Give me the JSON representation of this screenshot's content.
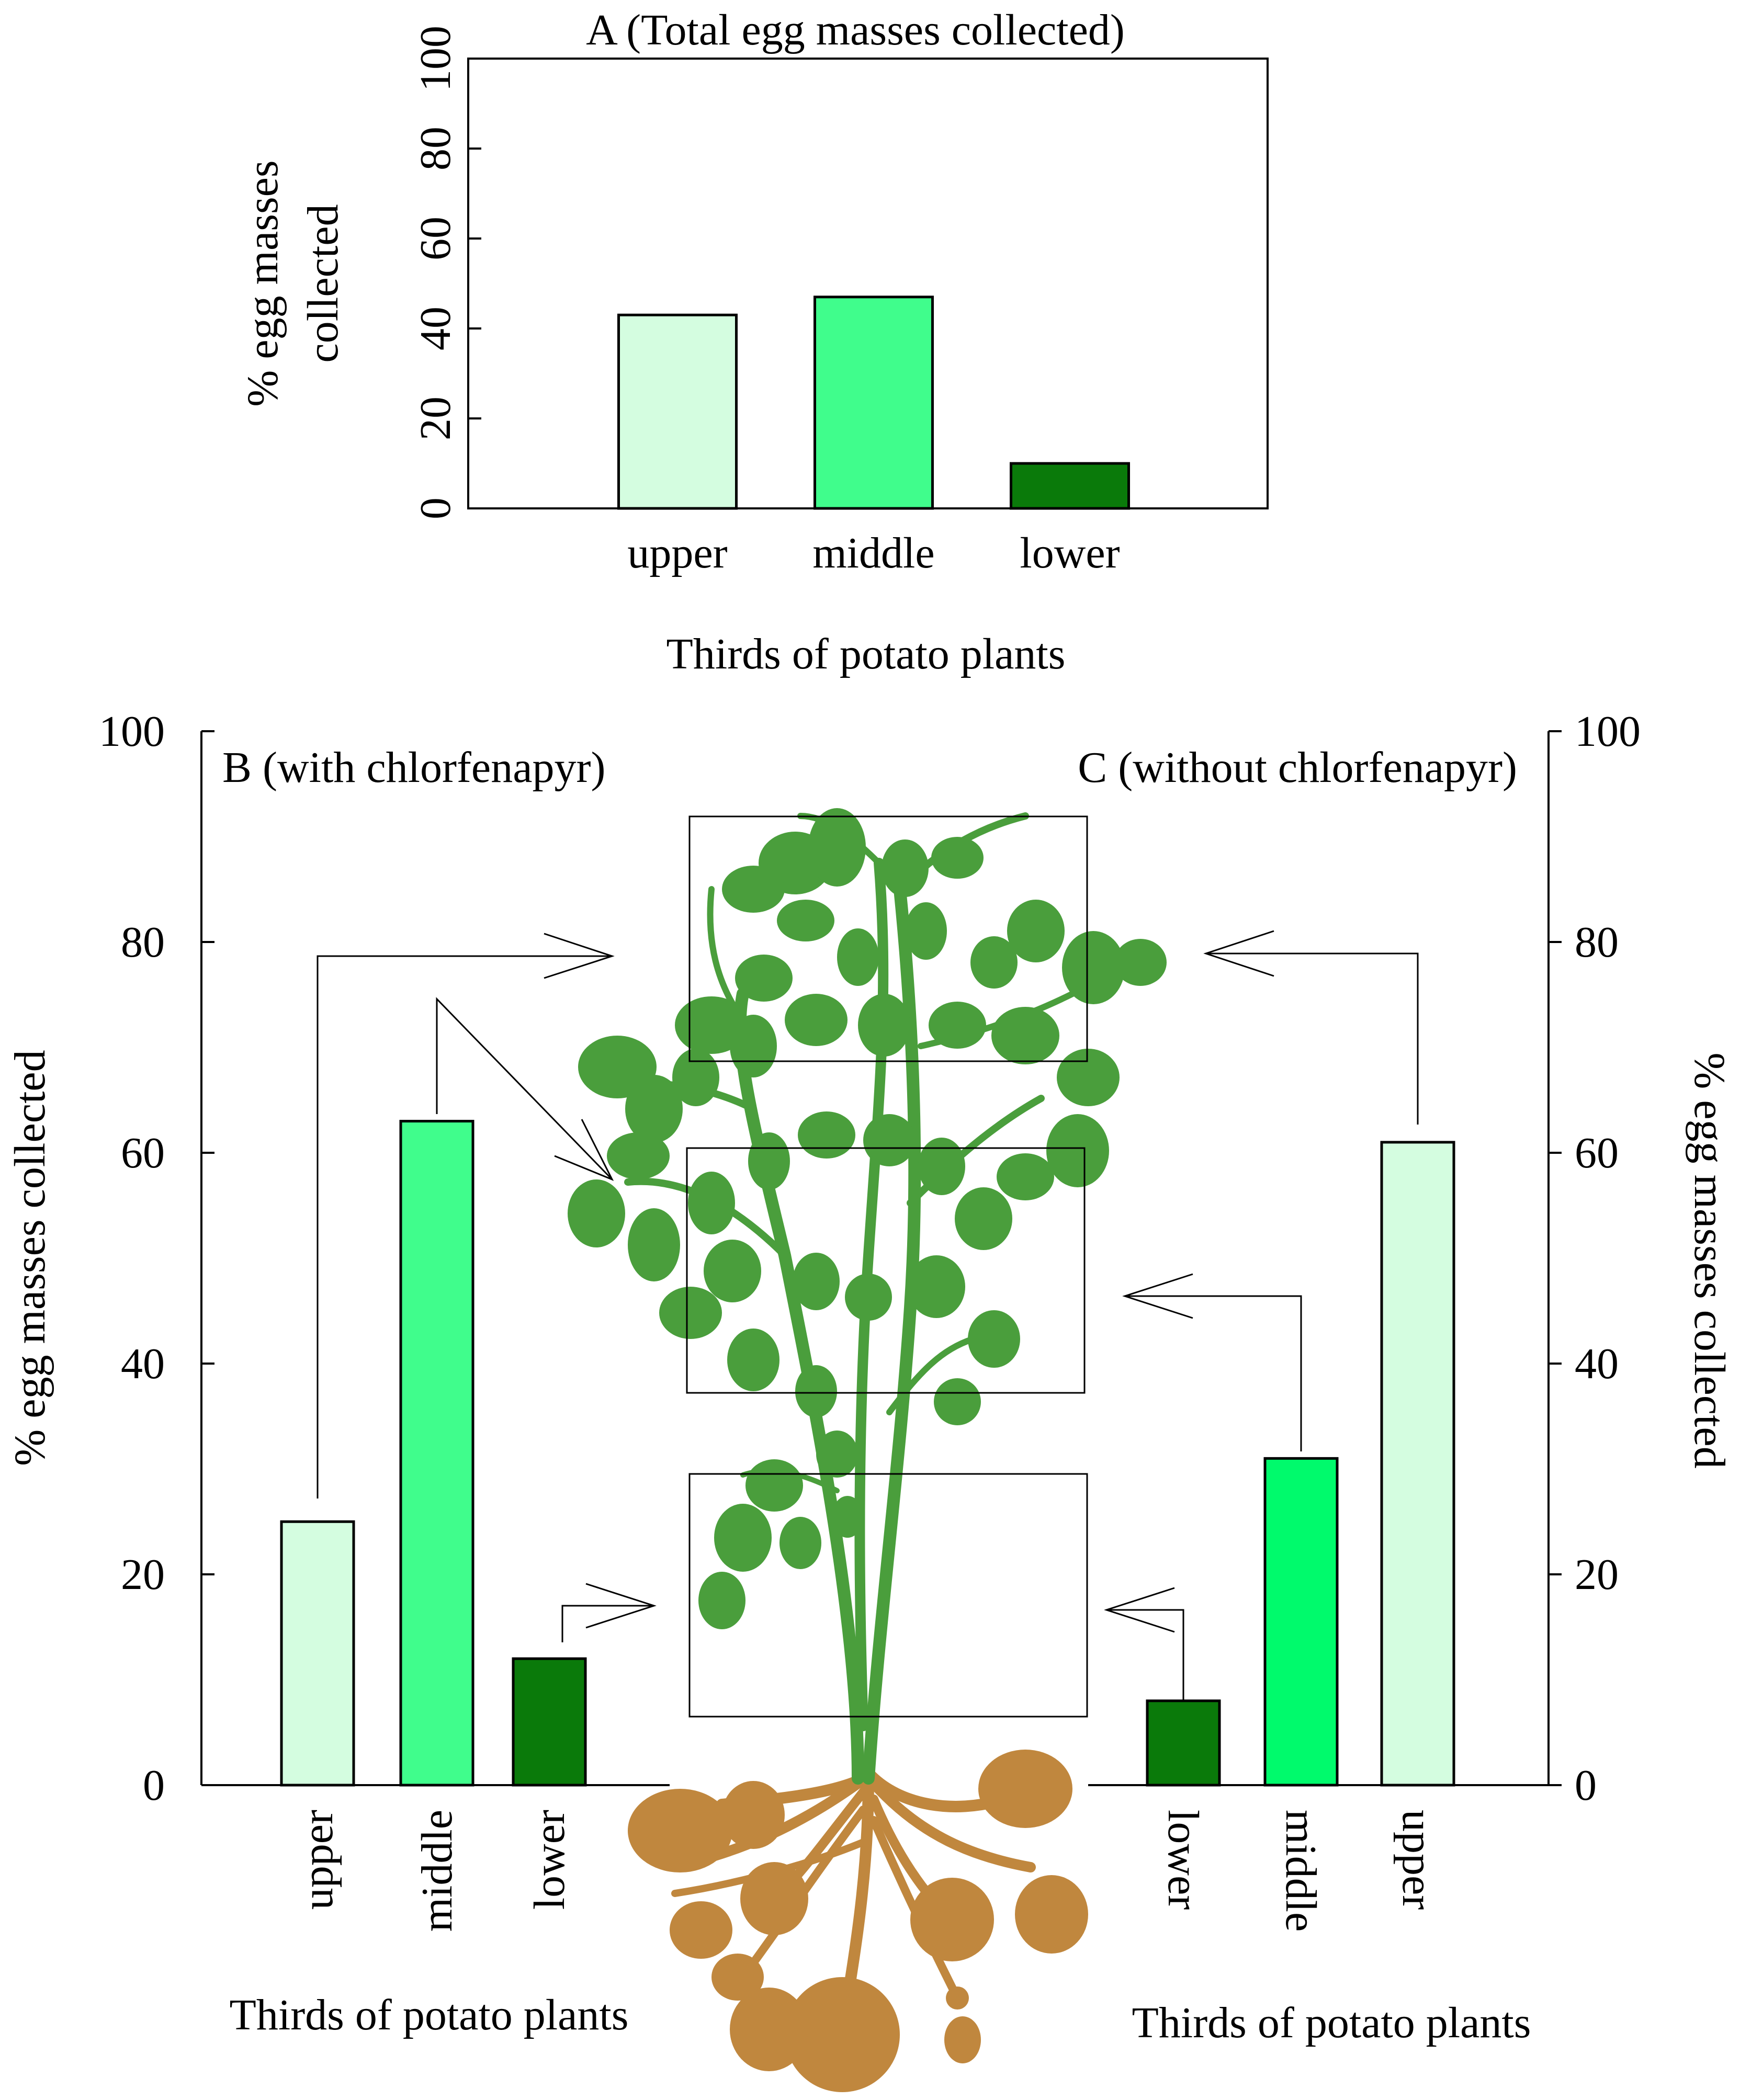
{
  "chart_data": [
    {
      "id": "A",
      "type": "bar",
      "title": "A (Total egg masses collected)",
      "ylabel_lines": [
        "% egg masses",
        "collected"
      ],
      "xlabel": "Thirds of potato plants",
      "categories": [
        "upper",
        "middle",
        "lower"
      ],
      "values": [
        43,
        47,
        10
      ],
      "colors": [
        "#d4fde0",
        "#40fd8c",
        "#0a7a0a"
      ],
      "ylim": [
        0,
        100
      ],
      "yticks": [
        0,
        20,
        40,
        60,
        80,
        100
      ],
      "grid": false
    },
    {
      "id": "B",
      "type": "bar",
      "title": "B (with chlorfenapyr)",
      "ylabel": "% egg masses collected",
      "xlabel": "Thirds of potato plants",
      "categories": [
        "upper",
        "middle",
        "lower"
      ],
      "values": [
        25,
        63,
        12
      ],
      "colors": [
        "#d4fde0",
        "#40fd8c",
        "#0a7a0a"
      ],
      "ylim": [
        0,
        100
      ],
      "yticks": [
        0,
        20,
        40,
        60,
        80,
        100
      ],
      "grid": false
    },
    {
      "id": "C",
      "type": "bar",
      "title": "C (without chlorfenapyr)",
      "ylabel": "% egg masses collected",
      "xlabel": "Thirds of potato plants",
      "categories": [
        "lower",
        "middle",
        "upper"
      ],
      "values": [
        8,
        31,
        61
      ],
      "colors": [
        "#0a7a0a",
        "#00fa6c",
        "#d4fde0"
      ],
      "ylim": [
        0,
        100
      ],
      "yticks": [
        0,
        20,
        40,
        60,
        80,
        100
      ],
      "grid": false
    }
  ],
  "illustration": {
    "subject": "potato-plant",
    "leaf_color": "#4a9e3c",
    "tuber_color": "#c0873e"
  }
}
